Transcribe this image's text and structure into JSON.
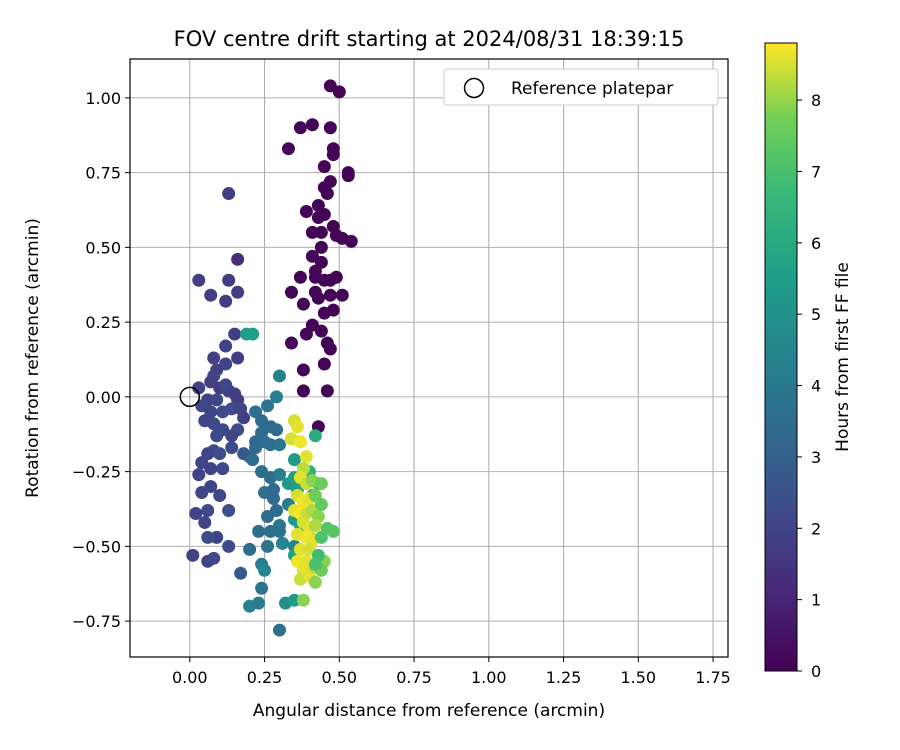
{
  "chart_data": {
    "type": "scatter",
    "title": "FOV centre drift starting at 2024/08/31 18:39:15",
    "xlabel": "Angular distance from reference (arcmin)",
    "ylabel": "Rotation from reference (arcmin)",
    "xlim": [
      -0.2,
      1.8
    ],
    "ylim": [
      -0.87,
      1.13
    ],
    "x_ticks": [
      0.0,
      0.25,
      0.5,
      0.75,
      1.0,
      1.25,
      1.5,
      1.75
    ],
    "x_tick_labels": [
      "0.00",
      "0.25",
      "0.50",
      "0.75",
      "1.00",
      "1.25",
      "1.50",
      "1.75"
    ],
    "y_ticks": [
      -0.75,
      -0.5,
      -0.25,
      0.0,
      0.25,
      0.5,
      0.75,
      1.0
    ],
    "y_tick_labels": [
      "−0.75",
      "−0.50",
      "−0.25",
      "0.00",
      "0.25",
      "0.50",
      "0.75",
      "1.00"
    ],
    "grid": true,
    "legend": {
      "placement": "top-right",
      "entries": [
        {
          "label": "Reference platepar",
          "marker": "open-circle"
        }
      ]
    },
    "reference_point": {
      "x": 0.0,
      "y": 0.0
    },
    "colorbar": {
      "label": "Hours from first FF file",
      "colormap": "viridis",
      "range": [
        0,
        8.8
      ],
      "ticks": [
        0,
        1,
        2,
        3,
        4,
        5,
        6,
        7,
        8
      ],
      "tick_labels": [
        "0",
        "1",
        "2",
        "3",
        "4",
        "5",
        "6",
        "7",
        "8"
      ]
    },
    "points": [
      [
        0.47,
        1.04,
        0.1
      ],
      [
        0.5,
        1.02,
        0.1
      ],
      [
        0.37,
        0.9,
        0.1
      ],
      [
        0.41,
        0.91,
        0.1
      ],
      [
        0.47,
        0.9,
        0.1
      ],
      [
        0.33,
        0.83,
        0.2
      ],
      [
        0.48,
        0.83,
        0.1
      ],
      [
        0.48,
        0.81,
        0.1
      ],
      [
        0.45,
        0.77,
        0.1
      ],
      [
        0.45,
        0.7,
        0.1
      ],
      [
        0.47,
        0.72,
        0.1
      ],
      [
        0.53,
        0.75,
        0.1
      ],
      [
        0.53,
        0.74,
        0.1
      ],
      [
        0.46,
        0.68,
        0.1
      ],
      [
        0.43,
        0.64,
        0.1
      ],
      [
        0.39,
        0.62,
        0.1
      ],
      [
        0.43,
        0.6,
        0.1
      ],
      [
        0.45,
        0.61,
        0.1
      ],
      [
        0.48,
        0.57,
        0.1
      ],
      [
        0.41,
        0.55,
        0.1
      ],
      [
        0.44,
        0.55,
        0.1
      ],
      [
        0.49,
        0.54,
        0.1
      ],
      [
        0.51,
        0.53,
        0.1
      ],
      [
        0.54,
        0.52,
        0.1
      ],
      [
        0.44,
        0.5,
        0.1
      ],
      [
        0.41,
        0.47,
        0.1
      ],
      [
        0.44,
        0.45,
        0.1
      ],
      [
        0.42,
        0.42,
        0.1
      ],
      [
        0.37,
        0.4,
        0.1
      ],
      [
        0.42,
        0.4,
        0.1
      ],
      [
        0.45,
        0.39,
        0.1
      ],
      [
        0.47,
        0.39,
        0.1
      ],
      [
        0.49,
        0.4,
        0.1
      ],
      [
        0.42,
        0.35,
        0.1
      ],
      [
        0.43,
        0.33,
        0.1
      ],
      [
        0.47,
        0.34,
        0.1
      ],
      [
        0.51,
        0.34,
        0.1
      ],
      [
        0.34,
        0.35,
        0.1
      ],
      [
        0.38,
        0.31,
        0.1
      ],
      [
        0.48,
        0.29,
        0.1
      ],
      [
        0.45,
        0.28,
        0.1
      ],
      [
        0.41,
        0.24,
        0.1
      ],
      [
        0.44,
        0.22,
        0.1
      ],
      [
        0.34,
        0.18,
        0.2
      ],
      [
        0.39,
        0.21,
        0.1
      ],
      [
        0.46,
        0.18,
        0.1
      ],
      [
        0.47,
        0.16,
        0.1
      ],
      [
        0.38,
        0.09,
        0.1
      ],
      [
        0.45,
        0.11,
        0.1
      ],
      [
        0.38,
        0.02,
        0.1
      ],
      [
        0.46,
        0.02,
        0.1
      ],
      [
        0.43,
        -0.1,
        0.1
      ],
      [
        0.13,
        0.68,
        1.8
      ],
      [
        0.03,
        0.39,
        1.8
      ],
      [
        0.13,
        0.39,
        1.8
      ],
      [
        0.16,
        0.46,
        1.3
      ],
      [
        0.07,
        0.34,
        1.8
      ],
      [
        0.12,
        0.32,
        1.8
      ],
      [
        0.16,
        0.35,
        1.8
      ],
      [
        0.15,
        0.21,
        1.8
      ],
      [
        0.12,
        0.17,
        2.0
      ],
      [
        0.08,
        0.13,
        1.9
      ],
      [
        0.12,
        0.11,
        2.0
      ],
      [
        0.16,
        0.13,
        1.8
      ],
      [
        0.09,
        0.09,
        1.9
      ],
      [
        0.08,
        0.07,
        2.1
      ],
      [
        0.03,
        0.03,
        1.9
      ],
      [
        0.07,
        0.05,
        1.9
      ],
      [
        0.1,
        0.03,
        1.8
      ],
      [
        0.13,
        0.02,
        1.8
      ],
      [
        0.12,
        0.04,
        2.1
      ],
      [
        0.06,
        -0.01,
        2.0
      ],
      [
        0.09,
        -0.01,
        2.1
      ],
      [
        0.16,
        -0.01,
        1.8
      ],
      [
        0.15,
        0.01,
        1.8
      ],
      [
        0.04,
        -0.03,
        2.1
      ],
      [
        0.07,
        -0.05,
        2.0
      ],
      [
        0.11,
        -0.05,
        2.2
      ],
      [
        0.14,
        -0.04,
        2.2
      ],
      [
        0.17,
        -0.04,
        2.0
      ],
      [
        0.18,
        -0.07,
        1.8
      ],
      [
        0.05,
        -0.08,
        2.0
      ],
      [
        0.08,
        -0.09,
        2.2
      ],
      [
        0.11,
        -0.11,
        2.1
      ],
      [
        0.16,
        -0.11,
        2.2
      ],
      [
        0.09,
        -0.13,
        2.2
      ],
      [
        0.14,
        -0.13,
        2.1
      ],
      [
        0.08,
        -0.18,
        2.2
      ],
      [
        0.06,
        -0.19,
        2.0
      ],
      [
        0.1,
        -0.19,
        2.3
      ],
      [
        0.14,
        -0.17,
        2.3
      ],
      [
        0.04,
        -0.22,
        2.1
      ],
      [
        0.07,
        -0.24,
        2.0
      ],
      [
        0.11,
        -0.24,
        2.2
      ],
      [
        0.03,
        -0.26,
        2.0
      ],
      [
        0.07,
        -0.3,
        2.0
      ],
      [
        0.04,
        -0.32,
        2.0
      ],
      [
        0.1,
        -0.33,
        2.1
      ],
      [
        0.02,
        -0.39,
        2.0
      ],
      [
        0.06,
        -0.38,
        2.2
      ],
      [
        0.13,
        -0.38,
        2.3
      ],
      [
        0.05,
        -0.42,
        2.0
      ],
      [
        0.09,
        -0.47,
        2.0
      ],
      [
        0.06,
        -0.47,
        2.3
      ],
      [
        0.13,
        -0.5,
        2.2
      ],
      [
        0.01,
        -0.53,
        2.0
      ],
      [
        0.06,
        -0.55,
        2.0
      ],
      [
        0.08,
        -0.54,
        2.1
      ],
      [
        0.18,
        -0.19,
        2.8
      ],
      [
        0.2,
        -0.2,
        2.8
      ],
      [
        0.17,
        -0.59,
        2.8
      ],
      [
        0.22,
        -0.05,
        3.6
      ],
      [
        0.24,
        -0.08,
        3.5
      ],
      [
        0.26,
        -0.03,
        3.9
      ],
      [
        0.29,
        0.0,
        4.2
      ],
      [
        0.3,
        0.07,
        4.3
      ],
      [
        0.27,
        -0.1,
        3.4
      ],
      [
        0.29,
        -0.11,
        3.4
      ],
      [
        0.24,
        -0.12,
        3.5
      ],
      [
        0.22,
        -0.15,
        3.3
      ],
      [
        0.25,
        -0.15,
        3.5
      ],
      [
        0.22,
        -0.17,
        3.4
      ],
      [
        0.21,
        -0.21,
        3.5
      ],
      [
        0.27,
        -0.16,
        3.6
      ],
      [
        0.3,
        -0.16,
        3.9
      ],
      [
        0.24,
        -0.25,
        3.6
      ],
      [
        0.27,
        -0.27,
        3.6
      ],
      [
        0.25,
        -0.32,
        3.6
      ],
      [
        0.28,
        -0.31,
        3.4
      ],
      [
        0.3,
        -0.26,
        4.2
      ],
      [
        0.28,
        -0.34,
        3.4
      ],
      [
        0.26,
        -0.4,
        3.5
      ],
      [
        0.29,
        -0.38,
        3.5
      ],
      [
        0.3,
        -0.43,
        3.9
      ],
      [
        0.23,
        -0.45,
        3.6
      ],
      [
        0.27,
        -0.45,
        3.6
      ],
      [
        0.3,
        -0.45,
        3.8
      ],
      [
        0.2,
        -0.51,
        3.5
      ],
      [
        0.26,
        -0.5,
        3.8
      ],
      [
        0.33,
        -0.36,
        4.1
      ],
      [
        0.31,
        -0.49,
        4.4
      ],
      [
        0.35,
        -0.5,
        4.5
      ],
      [
        0.24,
        -0.56,
        4.2
      ],
      [
        0.25,
        -0.58,
        4.5
      ],
      [
        0.2,
        -0.7,
        4.4
      ],
      [
        0.24,
        -0.64,
        3.9
      ],
      [
        0.23,
        -0.69,
        4.1
      ],
      [
        0.3,
        -0.78,
        3.7
      ],
      [
        0.32,
        -0.69,
        4.9
      ],
      [
        0.35,
        -0.68,
        5.4
      ],
      [
        0.38,
        -0.68,
        7.9
      ],
      [
        0.19,
        0.21,
        5.5
      ],
      [
        0.21,
        0.21,
        5.6
      ],
      [
        0.33,
        -0.29,
        5.2
      ],
      [
        0.35,
        -0.21,
        5.3
      ],
      [
        0.35,
        -0.27,
        5.6
      ],
      [
        0.36,
        -0.31,
        5.6
      ],
      [
        0.36,
        -0.39,
        5.3
      ],
      [
        0.35,
        -0.41,
        5.2
      ],
      [
        0.37,
        -0.43,
        5.5
      ],
      [
        0.38,
        -0.45,
        5.9
      ],
      [
        0.35,
        -0.53,
        5.7
      ],
      [
        0.4,
        -0.47,
        6.0
      ],
      [
        0.41,
        -0.33,
        6.2
      ],
      [
        0.42,
        -0.13,
        6.1
      ],
      [
        0.4,
        -0.25,
        6.4
      ],
      [
        0.43,
        -0.29,
        6.8
      ],
      [
        0.35,
        -0.08,
        8.5
      ],
      [
        0.36,
        -0.1,
        8.6
      ],
      [
        0.34,
        -0.14,
        8.5
      ],
      [
        0.37,
        -0.15,
        8.7
      ],
      [
        0.39,
        -0.2,
        8.6
      ],
      [
        0.38,
        -0.24,
        8.3
      ],
      [
        0.37,
        -0.27,
        8.6
      ],
      [
        0.39,
        -0.29,
        8.4
      ],
      [
        0.36,
        -0.33,
        8.5
      ],
      [
        0.38,
        -0.35,
        8.7
      ],
      [
        0.4,
        -0.34,
        8.6
      ],
      [
        0.35,
        -0.38,
        8.6
      ],
      [
        0.37,
        -0.39,
        8.8
      ],
      [
        0.39,
        -0.39,
        8.4
      ],
      [
        0.41,
        -0.38,
        8.2
      ],
      [
        0.43,
        -0.4,
        7.9
      ],
      [
        0.38,
        -0.42,
        8.5
      ],
      [
        0.4,
        -0.44,
        8.6
      ],
      [
        0.42,
        -0.43,
        8.2
      ],
      [
        0.36,
        -0.46,
        8.6
      ],
      [
        0.39,
        -0.47,
        8.7
      ],
      [
        0.41,
        -0.48,
        8.6
      ],
      [
        0.37,
        -0.51,
        8.6
      ],
      [
        0.4,
        -0.51,
        8.5
      ],
      [
        0.36,
        -0.55,
        8.7
      ],
      [
        0.39,
        -0.55,
        8.6
      ],
      [
        0.38,
        -0.58,
        8.6
      ],
      [
        0.37,
        -0.61,
        8.4
      ],
      [
        0.4,
        -0.6,
        8.6
      ],
      [
        0.42,
        -0.57,
        8.2
      ],
      [
        0.45,
        -0.55,
        7.9
      ],
      [
        0.42,
        -0.62,
        7.9
      ],
      [
        0.44,
        -0.58,
        7.6
      ],
      [
        0.41,
        -0.28,
        7.9
      ],
      [
        0.44,
        -0.29,
        7.6
      ],
      [
        0.42,
        -0.33,
        7.7
      ],
      [
        0.44,
        -0.36,
        7.5
      ],
      [
        0.46,
        -0.44,
        7.2
      ],
      [
        0.48,
        -0.45,
        7.3
      ],
      [
        0.44,
        -0.47,
        7.1
      ],
      [
        0.43,
        -0.53,
        6.8
      ],
      [
        0.42,
        -0.56,
        7.0
      ]
    ]
  }
}
